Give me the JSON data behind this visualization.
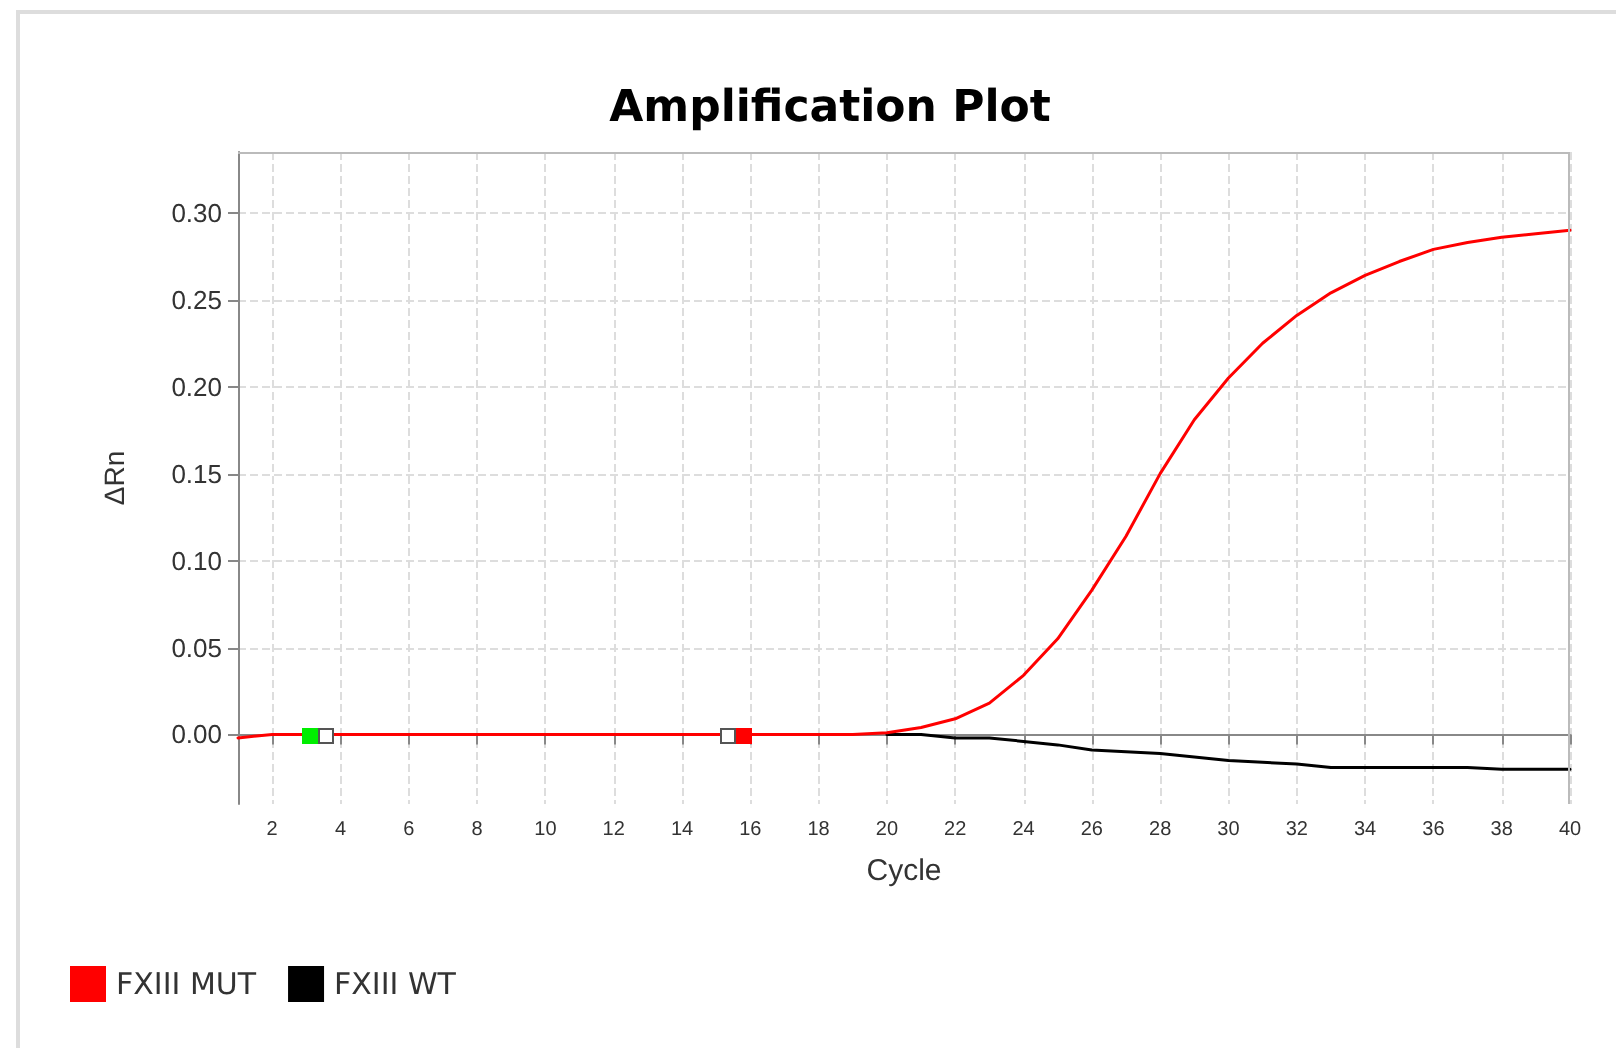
{
  "chart_data": {
    "type": "line",
    "title": "Amplification Plot",
    "xlabel": "Cycle",
    "ylabel": "ΔRn",
    "x": [
      1,
      2,
      3,
      4,
      5,
      6,
      7,
      8,
      9,
      10,
      11,
      12,
      13,
      14,
      15,
      16,
      17,
      18,
      19,
      20,
      21,
      22,
      23,
      24,
      25,
      26,
      27,
      28,
      29,
      30,
      31,
      32,
      33,
      34,
      35,
      36,
      37,
      38,
      39,
      40
    ],
    "series": [
      {
        "name": "FXIII MUT",
        "color": "#ff0000",
        "values": [
          -0.002,
          0,
          0,
          0,
          0,
          0,
          0,
          0,
          0,
          0,
          0,
          0,
          0,
          0,
          0,
          0,
          0,
          0,
          0,
          0.001,
          0.004,
          0.009,
          0.018,
          0.034,
          0.055,
          0.083,
          0.114,
          0.15,
          0.181,
          0.205,
          0.225,
          0.241,
          0.254,
          0.264,
          0.272,
          0.279,
          0.283,
          0.286,
          0.288,
          0.29
        ]
      },
      {
        "name": "FXIII WT",
        "color": "#000000",
        "values": [
          null,
          null,
          null,
          null,
          null,
          null,
          null,
          null,
          null,
          null,
          null,
          null,
          null,
          null,
          null,
          null,
          null,
          null,
          null,
          0.0,
          0.0,
          -0.002,
          -0.002,
          -0.004,
          -0.006,
          -0.009,
          -0.01,
          -0.011,
          -0.013,
          -0.015,
          -0.016,
          -0.017,
          -0.019,
          -0.019,
          -0.019,
          -0.019,
          -0.019,
          -0.02,
          -0.02,
          -0.02
        ]
      }
    ],
    "xlim": [
      1,
      40
    ],
    "xticks": [
      2,
      4,
      6,
      8,
      10,
      12,
      14,
      16,
      18,
      20,
      22,
      24,
      26,
      28,
      30,
      32,
      34,
      36,
      38,
      40
    ],
    "ylim": [
      -0.04,
      0.335
    ],
    "yticks": [
      {
        "value": 0,
        "label": "0.00"
      },
      {
        "value": 0.05,
        "label": "0.05"
      },
      {
        "value": 0.1,
        "label": "0.10"
      },
      {
        "value": 0.15,
        "label": "0.15"
      },
      {
        "value": 0.2,
        "label": "0.20"
      },
      {
        "value": 0.25,
        "label": "0.25"
      },
      {
        "value": 0.3,
        "label": "0.30"
      }
    ],
    "grid": true,
    "legend": "bottom left",
    "marker": "none",
    "line_style": "solid"
  }
}
